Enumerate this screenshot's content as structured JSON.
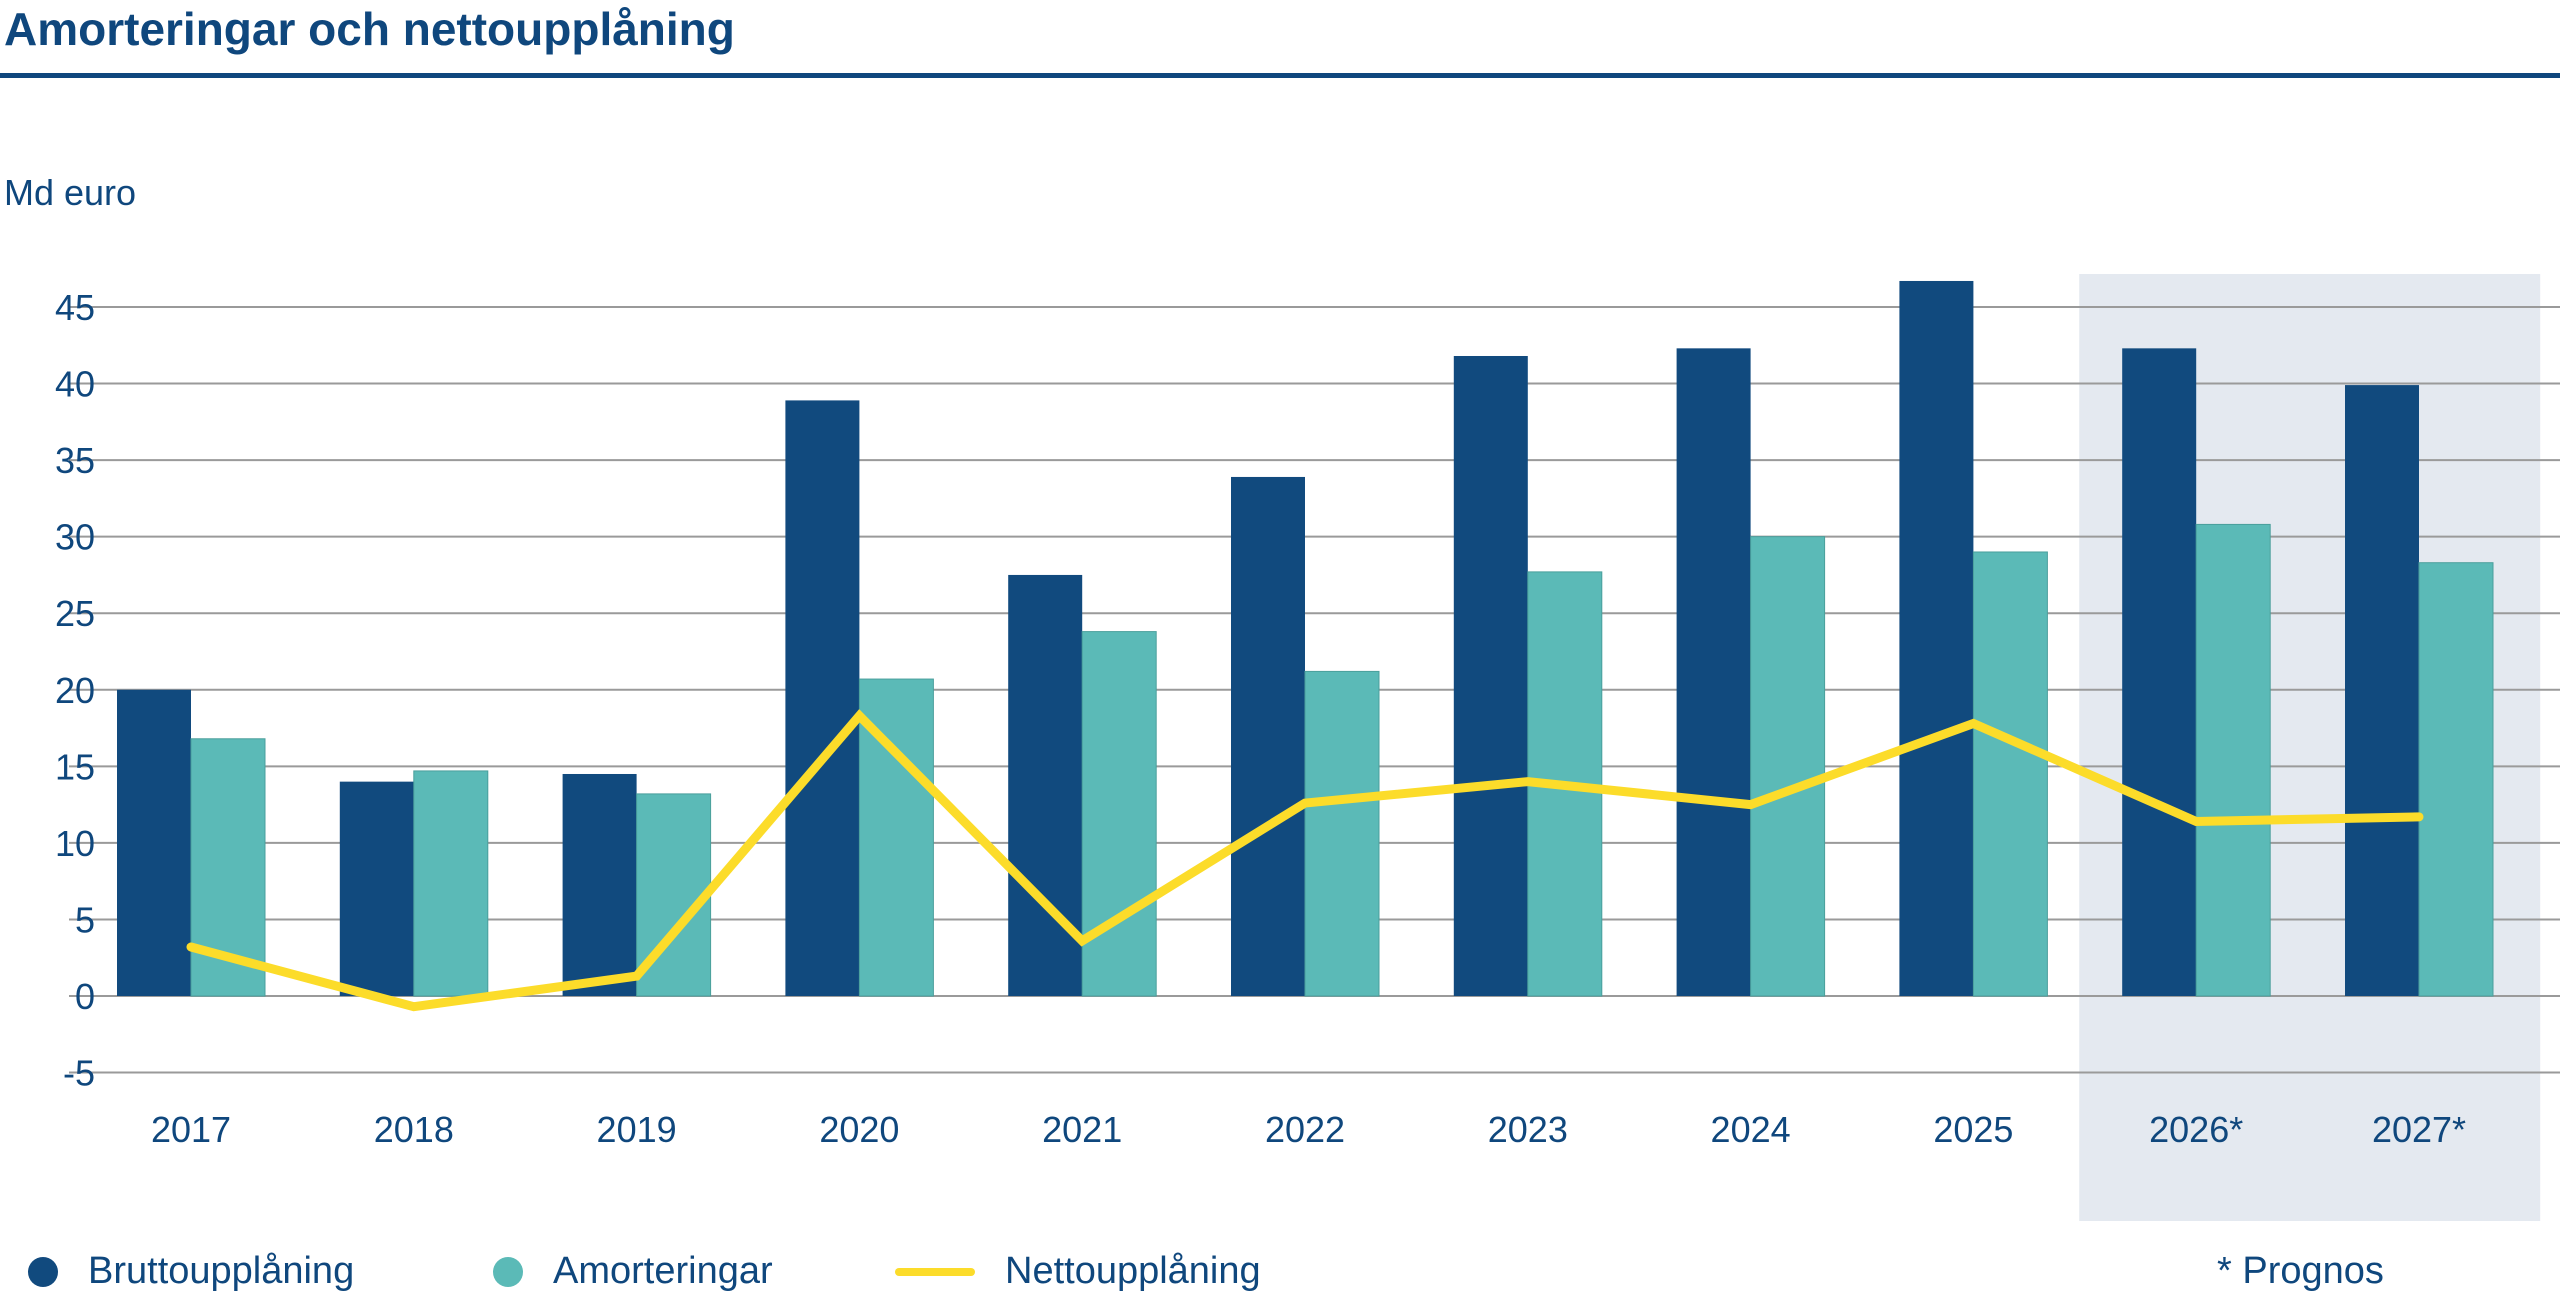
{
  "chart_data": {
    "type": "bar",
    "title": "Amorteringar och nettoupplåning",
    "ylabel": "Md euro",
    "xlabel": "",
    "ylim": [
      -5,
      45
    ],
    "yticks": [
      -5,
      0,
      5,
      10,
      15,
      20,
      25,
      30,
      35,
      40,
      45
    ],
    "grid": true,
    "legend_position": "bottom",
    "categories": [
      "2017",
      "2018",
      "2019",
      "2020",
      "2021",
      "2022",
      "2023",
      "2024",
      "2025",
      "2026*",
      "2027*"
    ],
    "forecast_categories": [
      "2026*",
      "2027*"
    ],
    "forecast_note": "* Prognos",
    "series": [
      {
        "name": "Bruttoupplåning",
        "type": "bar",
        "color": "#114a7e",
        "values": [
          20.0,
          14.0,
          14.5,
          38.9,
          27.5,
          33.9,
          41.8,
          42.3,
          46.7,
          42.3,
          39.9
        ]
      },
      {
        "name": "Amorteringar",
        "type": "bar",
        "color": "#5bbab7",
        "values": [
          16.8,
          14.7,
          13.2,
          20.7,
          23.8,
          21.2,
          27.7,
          30.0,
          29.0,
          30.8,
          28.3
        ]
      },
      {
        "name": "Nettoupplåning",
        "type": "line",
        "color": "#fcdc2a",
        "values": [
          3.2,
          -0.7,
          1.3,
          18.3,
          3.6,
          12.6,
          14.0,
          12.5,
          17.8,
          11.4,
          11.7
        ]
      }
    ],
    "forecast_shade_color": "#e4e9f0"
  }
}
